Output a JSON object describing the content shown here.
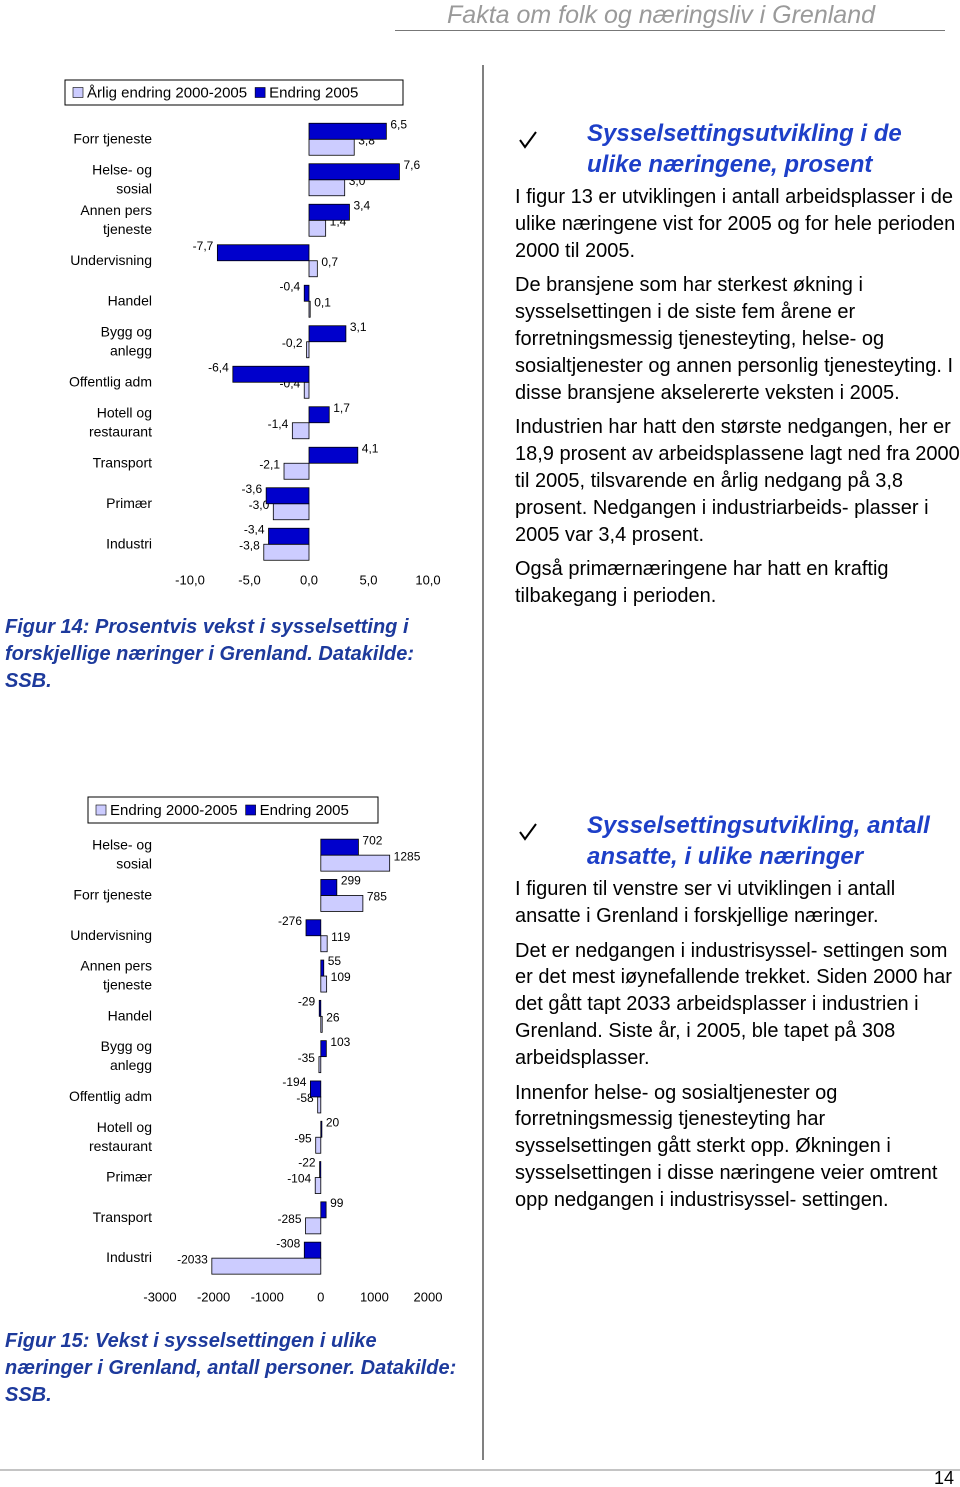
{
  "header": {
    "title": "Fakta om folk og næringsliv i Grenland"
  },
  "chart_data": [
    {
      "type": "bar",
      "orientation": "horizontal",
      "legend": "top",
      "caption": "Figur 14: Prosentvis vekst i sysselsetting i forskjellige næringer i Grenland.  Datakilde: SSB.",
      "categories": [
        "Forr tjeneste",
        "Helse- og sosial",
        "Annen pers tjeneste",
        "Undervisning",
        "Handel",
        "Bygg og anlegg",
        "Offentlig adm",
        "Hotell og restaurant",
        "Transport",
        "Primær",
        "Industri"
      ],
      "series": [
        {
          "name": "Årlig endring 2000-2005",
          "color": "#ccccff",
          "values": [
            3.8,
            3.0,
            1.4,
            0.7,
            0.1,
            -0.2,
            -0.4,
            -1.4,
            -2.1,
            -3.0,
            -3.8
          ],
          "value_labels": [
            "3,8",
            "3,0",
            "1,4",
            "0,7",
            "0,1",
            "-0,2",
            "-0,4",
            "-1,4",
            "-2,1",
            "-3,0",
            "-3,8"
          ]
        },
        {
          "name": "Endring 2005",
          "color": "#0000cc",
          "values": [
            6.5,
            7.6,
            3.4,
            -7.7,
            -0.4,
            3.1,
            -6.4,
            1.7,
            4.1,
            -3.6,
            -3.4
          ],
          "value_labels": [
            "6,5",
            "7,6",
            "3,4",
            "-7,7",
            "-0,4",
            "3,1",
            "-6,4",
            "1,7",
            "4,1",
            "-3,6",
            "-3,4"
          ]
        }
      ],
      "xlim": [
        -10,
        10
      ],
      "xticks": [
        {
          "value": -10,
          "label": "-10,0"
        },
        {
          "value": -5,
          "label": "-5,0"
        },
        {
          "value": 0,
          "label": "0,0"
        },
        {
          "value": 5,
          "label": "5,0"
        },
        {
          "value": 10,
          "label": "10,0"
        }
      ]
    },
    {
      "type": "bar",
      "orientation": "horizontal",
      "legend": "top",
      "caption": "Figur 15: Vekst i sysselsettingen i ulike næringer i Grenland, antall personer. Datakilde: SSB.",
      "categories": [
        "Helse- og sosial",
        "Forr tjeneste",
        "Undervisning",
        "Annen pers tjeneste",
        "Handel",
        "Bygg og anlegg",
        "Offentlig adm",
        "Hotell og restaurant",
        "Primær",
        "Transport",
        "Industri"
      ],
      "series": [
        {
          "name": "Endring 2000-2005",
          "color": "#ccccff",
          "values": [
            1285,
            785,
            119,
            109,
            26,
            -35,
            -58,
            -95,
            -104,
            -285,
            -2033
          ]
        },
        {
          "name": "Endring 2005",
          "color": "#0000cc",
          "values": [
            702,
            299,
            -276,
            55,
            -29,
            103,
            -194,
            20,
            -22,
            99,
            -308
          ]
        }
      ],
      "xlim": [
        -3000,
        2000
      ],
      "xticks": [
        -3000,
        -2000,
        -1000,
        0,
        1000,
        2000
      ]
    }
  ],
  "sections": [
    {
      "heading": "Sysselsettingsutvikling i de ulike næringene, prosent",
      "paragraphs": [
        "I figur 13 er utviklingen i antall arbeidsplasser i de ulike næringene vist for 2005 og for hele perioden 2000 til 2005.",
        "De bransjene som har sterkest økning i sysselsettingen i de siste fem årene er forretningsmessig tjenesteyting, helse- og sosialtjenester og annen personlig tjenesteyting. I disse bransjene akselererte veksten i 2005.",
        "Industrien har hatt den største nedgangen, her er 18,9 prosent av arbeidsplassene lagt ned fra 2000 til 2005, tilsvarende en årlig nedgang på 3,8 prosent. Nedgangen i industriarbeids- plasser i 2005 var 3,4 prosent.",
        "Også primærnæringene har hatt en kraftig tilbakegang i perioden."
      ]
    },
    {
      "heading": "Sysselsettingsutvikling, antall ansatte, i ulike næringer",
      "paragraphs": [
        "I figuren til venstre ser vi utviklingen i antall ansatte i Grenland i forskjellige næringer.",
        "Det er nedgangen i industrisyssel- settingen som er det mest iøynefallende trekket. Siden 2000 har det gått tapt 2033 arbeidsplasser i industrien i Grenland. Siste år, i 2005, ble tapet på 308 arbeidsplasser.",
        "Innenfor helse- og sosialtjenester og forretningsmessig tjenesteyting har sysselsettingen gått sterkt opp. Økningen i sysselsettingen i disse næringene veier omtrent opp nedgangen i industrisyssel- settingen."
      ]
    }
  ],
  "footer": {
    "page_number": "14"
  }
}
